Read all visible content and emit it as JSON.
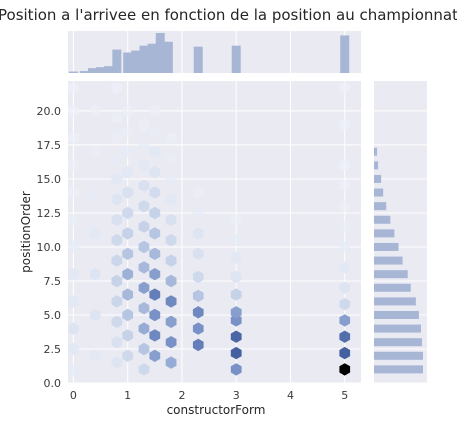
{
  "chart_data": {
    "type": "jointplot-hexbin",
    "title": "Position a l'arrivee en fonction de la position au championnat",
    "xlabel": "constructorForm",
    "ylabel": "positionOrder",
    "xlim": [
      -0.1,
      5.3
    ],
    "ylim": [
      0,
      22.2
    ],
    "x_ticks": [
      "0",
      "1",
      "2",
      "3",
      "4",
      "5"
    ],
    "y_ticks": [
      "0.0",
      "2.5",
      "5.0",
      "7.5",
      "10.0",
      "12.5",
      "15.0",
      "17.5",
      "20.0"
    ],
    "grid": true,
    "legend": "none",
    "colors": {
      "background": "#eaeaf2",
      "grid": "#ffffff",
      "marginal": "#a8b6d6",
      "hex_low": "#ffffff",
      "hex_high": "#000000"
    },
    "hexbin": [
      {
        "x": 0.0,
        "y": 1.0,
        "count": 0.08
      },
      {
        "x": 0.0,
        "y": 2.5,
        "count": 0.1
      },
      {
        "x": 0.0,
        "y": 4.0,
        "count": 0.12
      },
      {
        "x": 0.0,
        "y": 6.0,
        "count": 0.1
      },
      {
        "x": 0.0,
        "y": 8.0,
        "count": 0.1
      },
      {
        "x": 0.0,
        "y": 10.0,
        "count": 0.08
      },
      {
        "x": 0.0,
        "y": 12.0,
        "count": 0.06
      },
      {
        "x": 0.0,
        "y": 14.0,
        "count": 0.05
      },
      {
        "x": 0.0,
        "y": 16.0,
        "count": 0.05
      },
      {
        "x": 0.0,
        "y": 18.0,
        "count": 0.04
      },
      {
        "x": 0.0,
        "y": 20.0,
        "count": 0.04
      },
      {
        "x": 0.0,
        "y": 21.7,
        "count": 0.04
      },
      {
        "x": 0.4,
        "y": 2.0,
        "count": 0.1
      },
      {
        "x": 0.4,
        "y": 5.0,
        "count": 0.12
      },
      {
        "x": 0.4,
        "y": 8.0,
        "count": 0.12
      },
      {
        "x": 0.4,
        "y": 11.0,
        "count": 0.1
      },
      {
        "x": 0.4,
        "y": 14.0,
        "count": 0.08
      },
      {
        "x": 0.4,
        "y": 17.0,
        "count": 0.06
      },
      {
        "x": 0.4,
        "y": 20.0,
        "count": 0.05
      },
      {
        "x": 0.8,
        "y": 1.5,
        "count": 0.12
      },
      {
        "x": 0.8,
        "y": 3.0,
        "count": 0.15
      },
      {
        "x": 0.8,
        "y": 4.5,
        "count": 0.2
      },
      {
        "x": 0.8,
        "y": 6.0,
        "count": 0.22
      },
      {
        "x": 0.8,
        "y": 7.5,
        "count": 0.25
      },
      {
        "x": 0.8,
        "y": 9.0,
        "count": 0.22
      },
      {
        "x": 0.8,
        "y": 10.5,
        "count": 0.2
      },
      {
        "x": 0.8,
        "y": 12.0,
        "count": 0.15
      },
      {
        "x": 0.8,
        "y": 13.5,
        "count": 0.12
      },
      {
        "x": 0.8,
        "y": 15.0,
        "count": 0.1
      },
      {
        "x": 0.8,
        "y": 16.5,
        "count": 0.08
      },
      {
        "x": 0.8,
        "y": 18.0,
        "count": 0.06
      },
      {
        "x": 0.8,
        "y": 19.5,
        "count": 0.05
      },
      {
        "x": 0.8,
        "y": 21.7,
        "count": 0.04
      },
      {
        "x": 1.0,
        "y": 2.0,
        "count": 0.2
      },
      {
        "x": 1.0,
        "y": 3.5,
        "count": 0.25
      },
      {
        "x": 1.0,
        "y": 5.0,
        "count": 0.3
      },
      {
        "x": 1.0,
        "y": 6.5,
        "count": 0.35
      },
      {
        "x": 1.0,
        "y": 8.0,
        "count": 0.38
      },
      {
        "x": 1.0,
        "y": 9.5,
        "count": 0.3
      },
      {
        "x": 1.0,
        "y": 11.0,
        "count": 0.25
      },
      {
        "x": 1.0,
        "y": 12.5,
        "count": 0.2
      },
      {
        "x": 1.0,
        "y": 14.0,
        "count": 0.15
      },
      {
        "x": 1.0,
        "y": 15.5,
        "count": 0.1
      },
      {
        "x": 1.0,
        "y": 17.0,
        "count": 0.08
      },
      {
        "x": 1.0,
        "y": 18.5,
        "count": 0.06
      },
      {
        "x": 1.0,
        "y": 20.0,
        "count": 0.05
      },
      {
        "x": 1.3,
        "y": 1.0,
        "count": 0.2
      },
      {
        "x": 1.3,
        "y": 2.5,
        "count": 0.3
      },
      {
        "x": 1.3,
        "y": 4.0,
        "count": 0.4
      },
      {
        "x": 1.3,
        "y": 5.5,
        "count": 0.35
      },
      {
        "x": 1.3,
        "y": 7.0,
        "count": 0.45
      },
      {
        "x": 1.3,
        "y": 8.5,
        "count": 0.35
      },
      {
        "x": 1.3,
        "y": 10.0,
        "count": 0.3
      },
      {
        "x": 1.3,
        "y": 11.5,
        "count": 0.25
      },
      {
        "x": 1.3,
        "y": 13.0,
        "count": 0.2
      },
      {
        "x": 1.3,
        "y": 14.5,
        "count": 0.15
      },
      {
        "x": 1.3,
        "y": 16.0,
        "count": 0.1
      },
      {
        "x": 1.3,
        "y": 17.5,
        "count": 0.08
      },
      {
        "x": 1.3,
        "y": 19.0,
        "count": 0.05
      },
      {
        "x": 1.5,
        "y": 2.0,
        "count": 0.45
      },
      {
        "x": 1.5,
        "y": 3.5,
        "count": 0.55
      },
      {
        "x": 1.5,
        "y": 5.0,
        "count": 0.5
      },
      {
        "x": 1.5,
        "y": 6.5,
        "count": 0.6
      },
      {
        "x": 1.5,
        "y": 8.0,
        "count": 0.45
      },
      {
        "x": 1.5,
        "y": 9.5,
        "count": 0.35
      },
      {
        "x": 1.5,
        "y": 11.0,
        "count": 0.3
      },
      {
        "x": 1.5,
        "y": 12.5,
        "count": 0.25
      },
      {
        "x": 1.5,
        "y": 14.0,
        "count": 0.18
      },
      {
        "x": 1.5,
        "y": 15.5,
        "count": 0.12
      },
      {
        "x": 1.5,
        "y": 17.0,
        "count": 0.1
      },
      {
        "x": 1.5,
        "y": 18.5,
        "count": 0.07
      },
      {
        "x": 1.5,
        "y": 20.0,
        "count": 0.05
      },
      {
        "x": 1.8,
        "y": 1.5,
        "count": 0.4
      },
      {
        "x": 1.8,
        "y": 3.0,
        "count": 0.5
      },
      {
        "x": 1.8,
        "y": 4.5,
        "count": 0.45
      },
      {
        "x": 1.8,
        "y": 6.0,
        "count": 0.55
      },
      {
        "x": 1.8,
        "y": 7.5,
        "count": 0.35
      },
      {
        "x": 1.8,
        "y": 9.0,
        "count": 0.25
      },
      {
        "x": 1.8,
        "y": 10.5,
        "count": 0.2
      },
      {
        "x": 1.8,
        "y": 12.0,
        "count": 0.15
      },
      {
        "x": 1.8,
        "y": 13.5,
        "count": 0.1
      },
      {
        "x": 1.8,
        "y": 15.0,
        "count": 0.08
      },
      {
        "x": 1.8,
        "y": 16.5,
        "count": 0.06
      },
      {
        "x": 1.8,
        "y": 18.0,
        "count": 0.05
      },
      {
        "x": 2.3,
        "y": 2.8,
        "count": 0.6
      },
      {
        "x": 2.3,
        "y": 4.0,
        "count": 0.5
      },
      {
        "x": 2.3,
        "y": 5.2,
        "count": 0.55
      },
      {
        "x": 2.3,
        "y": 6.4,
        "count": 0.3
      },
      {
        "x": 2.3,
        "y": 7.8,
        "count": 0.2
      },
      {
        "x": 2.3,
        "y": 9.5,
        "count": 0.15
      },
      {
        "x": 2.3,
        "y": 11.0,
        "count": 0.12
      },
      {
        "x": 2.3,
        "y": 12.5,
        "count": 0.08
      },
      {
        "x": 2.3,
        "y": 14.0,
        "count": 0.05
      },
      {
        "x": 3.0,
        "y": 1.0,
        "count": 0.5
      },
      {
        "x": 3.0,
        "y": 2.2,
        "count": 0.75
      },
      {
        "x": 3.0,
        "y": 3.4,
        "count": 0.72
      },
      {
        "x": 3.0,
        "y": 4.6,
        "count": 0.5
      },
      {
        "x": 3.0,
        "y": 5.2,
        "count": 0.45
      },
      {
        "x": 3.0,
        "y": 6.5,
        "count": 0.25
      },
      {
        "x": 3.0,
        "y": 7.8,
        "count": 0.12
      },
      {
        "x": 3.0,
        "y": 9.2,
        "count": 0.1
      },
      {
        "x": 3.0,
        "y": 10.5,
        "count": 0.08
      },
      {
        "x": 3.0,
        "y": 12.0,
        "count": 0.05
      },
      {
        "x": 5.0,
        "y": 1.0,
        "count": 1.0
      },
      {
        "x": 5.0,
        "y": 2.2,
        "count": 0.75
      },
      {
        "x": 5.0,
        "y": 3.4,
        "count": 0.68
      },
      {
        "x": 5.0,
        "y": 4.6,
        "count": 0.45
      },
      {
        "x": 5.0,
        "y": 5.8,
        "count": 0.2
      },
      {
        "x": 5.0,
        "y": 7.0,
        "count": 0.12
      },
      {
        "x": 5.0,
        "y": 8.5,
        "count": 0.1
      },
      {
        "x": 5.0,
        "y": 10.0,
        "count": 0.08
      },
      {
        "x": 5.0,
        "y": 11.5,
        "count": 0.06
      },
      {
        "x": 5.0,
        "y": 13.0,
        "count": 0.05
      },
      {
        "x": 5.0,
        "y": 14.5,
        "count": 0.04
      },
      {
        "x": 5.0,
        "y": 16.0,
        "count": 0.04
      },
      {
        "x": 5.0,
        "y": 19.0,
        "count": 0.04
      },
      {
        "x": 5.0,
        "y": 21.7,
        "count": 0.04
      }
    ],
    "marginal_x": [
      {
        "x": 0.0,
        "count": 3
      },
      {
        "x": 0.2,
        "count": 4
      },
      {
        "x": 0.35,
        "count": 10
      },
      {
        "x": 0.5,
        "count": 12
      },
      {
        "x": 0.65,
        "count": 14
      },
      {
        "x": 0.8,
        "count": 48
      },
      {
        "x": 1.0,
        "count": 42
      },
      {
        "x": 1.15,
        "count": 46
      },
      {
        "x": 1.3,
        "count": 56
      },
      {
        "x": 1.45,
        "count": 60
      },
      {
        "x": 1.6,
        "count": 82
      },
      {
        "x": 1.75,
        "count": 64
      },
      {
        "x": 2.3,
        "count": 54
      },
      {
        "x": 3.0,
        "count": 56
      },
      {
        "x": 5.0,
        "count": 77
      }
    ],
    "marginal_y": [
      {
        "y": 1.0,
        "count": 48
      },
      {
        "y": 2.0,
        "count": 48
      },
      {
        "y": 3.0,
        "count": 47
      },
      {
        "y": 4.0,
        "count": 46
      },
      {
        "y": 5.0,
        "count": 44
      },
      {
        "y": 6.0,
        "count": 41
      },
      {
        "y": 7.0,
        "count": 36
      },
      {
        "y": 8.0,
        "count": 33
      },
      {
        "y": 9.0,
        "count": 28
      },
      {
        "y": 10.0,
        "count": 24
      },
      {
        "y": 11.0,
        "count": 20
      },
      {
        "y": 12.0,
        "count": 16
      },
      {
        "y": 13.0,
        "count": 12
      },
      {
        "y": 14.0,
        "count": 9
      },
      {
        "y": 15.0,
        "count": 7
      },
      {
        "y": 16.0,
        "count": 4
      },
      {
        "y": 17.0,
        "count": 3
      }
    ]
  }
}
